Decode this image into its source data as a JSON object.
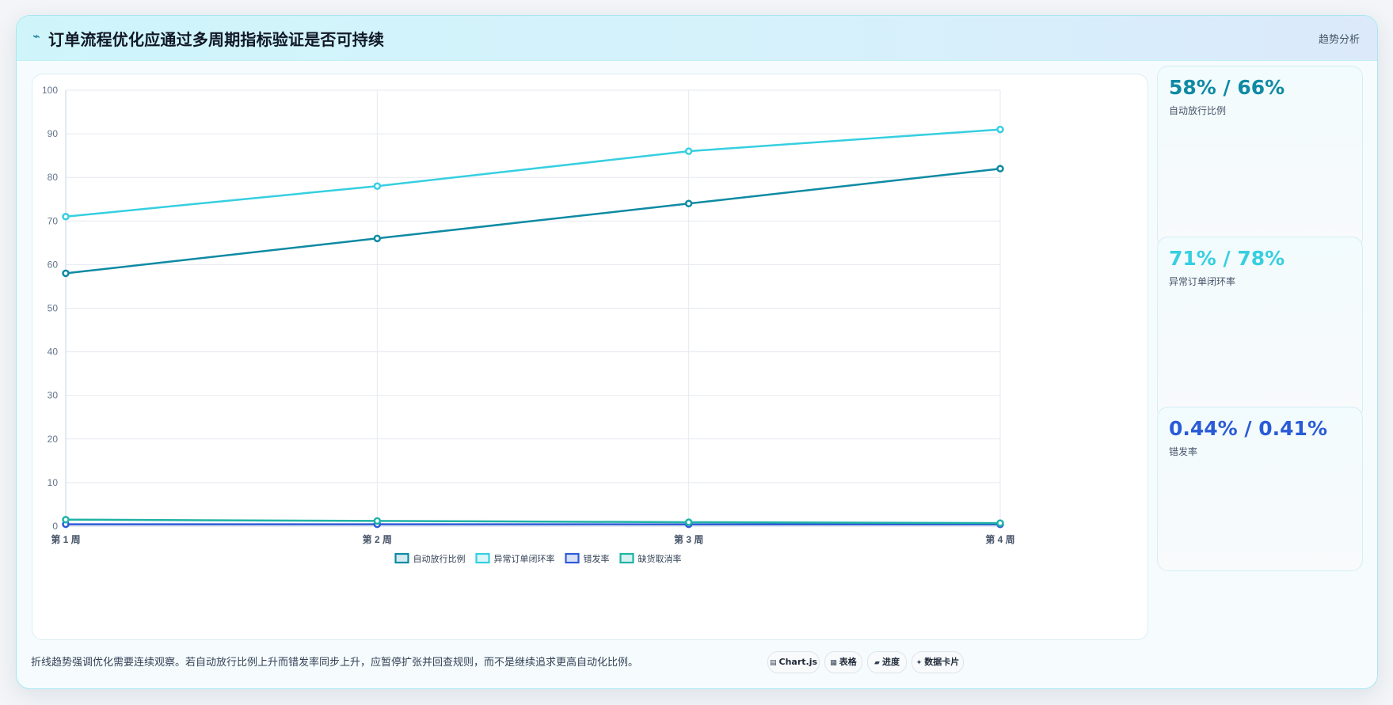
{
  "header": {
    "icon": "bolt-icon",
    "title": "订单流程优化应通过多周期指标验证是否可持续",
    "right_link": "趋势分析"
  },
  "chart_data": {
    "type": "line",
    "categories": [
      "第 1 周",
      "第 2 周",
      "第 3 周",
      "第 4 周"
    ],
    "ylim": [
      0,
      100
    ],
    "yticks": [
      0,
      10,
      20,
      30,
      40,
      50,
      60,
      70,
      80,
      90,
      100
    ],
    "grid": true,
    "legend_position": "bottom",
    "series": [
      {
        "name": "自动放行比例",
        "values": [
          58,
          66,
          74,
          82
        ],
        "color": "#0e8aa3"
      },
      {
        "name": "异常订单闭环率",
        "values": [
          71,
          78,
          86,
          91
        ],
        "color": "#36cfe0"
      },
      {
        "name": "错发率",
        "values": [
          0.44,
          0.43,
          0.42,
          0.41
        ],
        "color": "#2f5bd6"
      },
      {
        "name": "缺货取消率",
        "values": [
          1.5,
          1.2,
          0.9,
          0.7
        ],
        "color": "#1fb3a6"
      }
    ]
  },
  "side_cards": [
    {
      "value": "58% / 66%",
      "label": "自动放行比例",
      "color": "#0e8aa3"
    },
    {
      "value": "71% / 78%",
      "label": "异常订单闭环率",
      "color": "#36cfe0"
    },
    {
      "value": "0.44% / 0.41%",
      "label": "错发率",
      "color": "#2a5bd7"
    }
  ],
  "footer": {
    "note": "折线趋势强调优化需要连续观察。若自动放行比例上升而错发率同步上升，应暂停扩张并回查规则，而不是继续追求更高自动化比例。",
    "chips": [
      {
        "icon": "▤",
        "label": "Chart.js"
      },
      {
        "icon": "▦",
        "label": "表格"
      },
      {
        "icon": "▰",
        "label": "进度"
      },
      {
        "icon": "✦",
        "label": "数据卡片"
      }
    ]
  }
}
